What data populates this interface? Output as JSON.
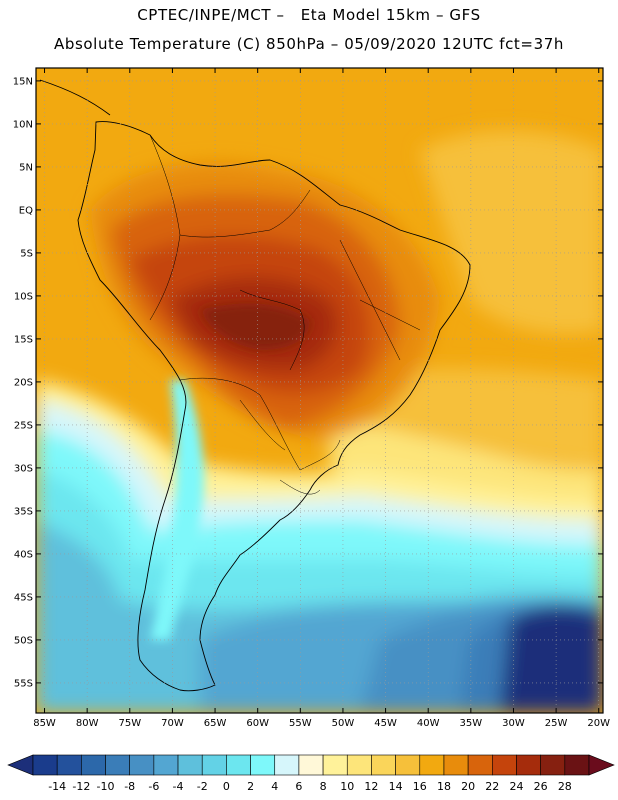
{
  "header": {
    "line1": "CPTEC/INPE/MCT –   Eta Model 15km – GFS",
    "line2": "Absolute Temperature (C) 850hPa – 05/09/2020 12UTC fct=37h"
  },
  "map": {
    "lon_range": [
      -86,
      -19.5
    ],
    "lat_range": [
      -58.5,
      16.5
    ],
    "lat_labels": [
      "15N",
      "10N",
      "5N",
      "EQ",
      "5S",
      "10S",
      "15S",
      "20S",
      "25S",
      "30S",
      "35S",
      "40S",
      "45S",
      "50S",
      "55S"
    ],
    "lat_values": [
      15,
      10,
      5,
      0,
      -5,
      -10,
      -15,
      -20,
      -25,
      -30,
      -35,
      -40,
      -45,
      -50,
      -55
    ],
    "lon_labels": [
      "85W",
      "80W",
      "75W",
      "70W",
      "65W",
      "60W",
      "55W",
      "50W",
      "45W",
      "40W",
      "35W",
      "30W",
      "25W",
      "20W"
    ],
    "lon_values": [
      -85,
      -80,
      -75,
      -70,
      -65,
      -60,
      -55,
      -50,
      -45,
      -40,
      -35,
      -30,
      -25,
      -20
    ],
    "grid": "dotted"
  },
  "colorbar": {
    "labels": [
      "-14",
      "-12",
      "-10",
      "-8",
      "-6",
      "-4",
      "-2",
      "0",
      "2",
      "4",
      "6",
      "8",
      "10",
      "12",
      "14",
      "16",
      "18",
      "20",
      "22",
      "24",
      "26",
      "28"
    ],
    "colors": [
      "#1a3c8c",
      "#23519c",
      "#2c68aa",
      "#3a7db8",
      "#4790c4",
      "#53a6d2",
      "#5ec0dc",
      "#63d2e6",
      "#6ce6ef",
      "#7ef8fa",
      "#d6f6fb",
      "#fff8d8",
      "#fff29a",
      "#fde57a",
      "#fad55a",
      "#f6c03a",
      "#f2a910",
      "#e88c0c",
      "#d8640c",
      "#c5440c",
      "#a52c0c",
      "#862010",
      "#6a1214"
    ],
    "under_color": "#1c2f7a",
    "over_color": "#6a0c1c"
  }
}
